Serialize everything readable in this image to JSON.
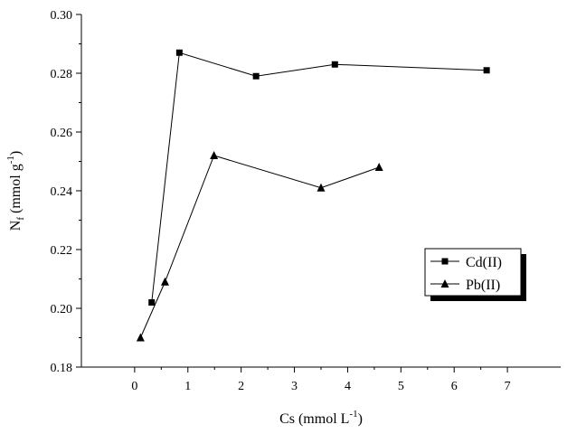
{
  "chart_data": {
    "type": "line",
    "ylabel_main": "N",
    "ylabel_sub": "f",
    "ylabel_units": " (mmol g",
    "ylabel_sup": "-1",
    "ylabel_close": ")",
    "xlabel_main": "Cs (mmol L",
    "xlabel_sup": "-1",
    "xlabel_close": ")",
    "xlim": [
      -1,
      8
    ],
    "ylim": [
      0.18,
      0.3
    ],
    "x_ticks": [
      0,
      1,
      2,
      3,
      4,
      5,
      6,
      7
    ],
    "x_tick_labels": [
      "0",
      "1",
      "2",
      "3",
      "4",
      "5",
      "6",
      "7"
    ],
    "y_ticks": [
      0.18,
      0.2,
      0.22,
      0.24,
      0.26,
      0.28,
      0.3
    ],
    "y_tick_labels": [
      "0.18",
      "0.20",
      "0.22",
      "0.24",
      "0.26",
      "0.28",
      "0.30"
    ],
    "grid": false,
    "legend_position": "lower-right",
    "series": [
      {
        "name": "Cd(II)",
        "marker": "square",
        "color": "#000000",
        "points": [
          {
            "x": 0.32,
            "y": 0.202
          },
          {
            "x": 0.84,
            "y": 0.287
          },
          {
            "x": 2.28,
            "y": 0.279
          },
          {
            "x": 3.76,
            "y": 0.283
          },
          {
            "x": 6.61,
            "y": 0.281
          }
        ]
      },
      {
        "name": "Pb(II)",
        "marker": "triangle",
        "color": "#000000",
        "points": [
          {
            "x": 0.11,
            "y": 0.19
          },
          {
            "x": 0.57,
            "y": 0.209
          },
          {
            "x": 1.49,
            "y": 0.252
          },
          {
            "x": 3.5,
            "y": 0.241
          },
          {
            "x": 4.59,
            "y": 0.248
          }
        ]
      }
    ]
  }
}
